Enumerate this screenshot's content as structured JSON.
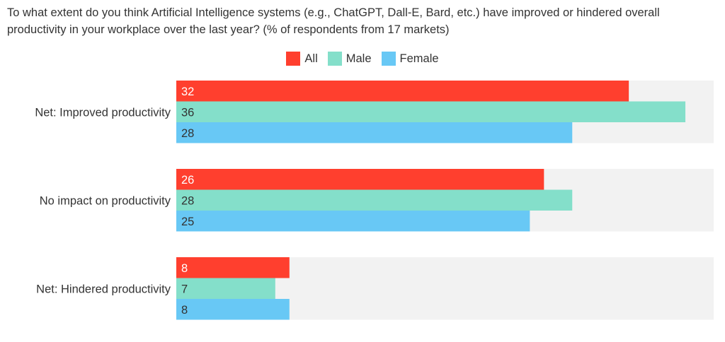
{
  "chart_data": {
    "type": "bar",
    "orientation": "horizontal",
    "title": "To what extent do you think Artificial Intelligence systems (e.g., ChatGPT, Dall-E, Bard, etc.) have improved or hindered overall productivity in your workplace over the last year? (% of respondents from 17 markets)",
    "categories": [
      "Net: Improved productivity",
      "No impact on productivity",
      "Net: Hindered productivity"
    ],
    "series": [
      {
        "name": "All",
        "color": "#ff3f2e",
        "label_color": "#ffffff",
        "values": [
          32,
          26,
          8
        ]
      },
      {
        "name": "Male",
        "color": "#84dfca",
        "label_color": "#333333",
        "values": [
          36,
          28,
          7
        ]
      },
      {
        "name": "Female",
        "color": "#68c8f5",
        "label_color": "#333333",
        "values": [
          28,
          25,
          8
        ]
      }
    ],
    "xlim": [
      0,
      38
    ],
    "legend_position": "top-center",
    "grid": false,
    "background_track_color": "#f2f2f2"
  }
}
